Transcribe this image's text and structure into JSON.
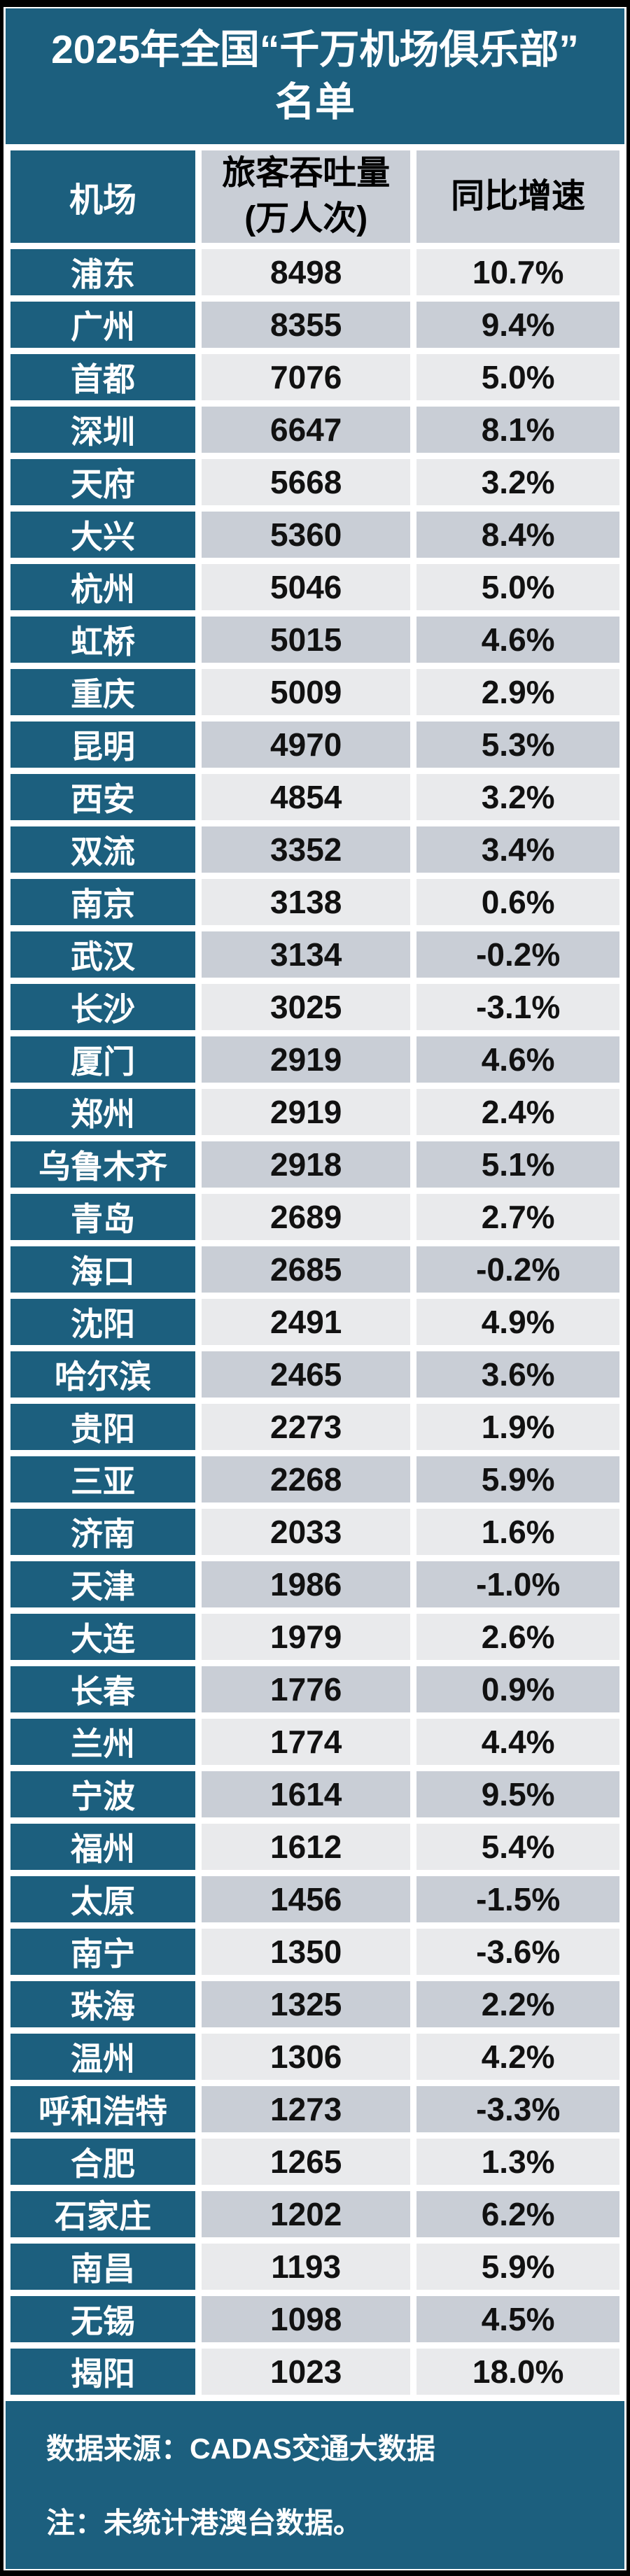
{
  "title": "2025年全国“千万机场俱乐部”名单",
  "colors": {
    "teal": "#1C5F7E",
    "row_light": "#E9EAEC",
    "row_dark": "#C9CED6",
    "frame": "#000000",
    "header_text": "#FFFFFF",
    "value_text": "#111111"
  },
  "chart_data": {
    "type": "table",
    "title": "2025年全国“千万机场俱乐部”名单",
    "columns": [
      "机场",
      "旅客吞吐量\n(万人次)",
      "同比增速"
    ],
    "column_keys": [
      "airport",
      "throughput_10k",
      "yoy_growth"
    ],
    "rows": [
      [
        "浦东",
        8498,
        "10.7%"
      ],
      [
        "广州",
        8355,
        "9.4%"
      ],
      [
        "首都",
        7076,
        "5.0%"
      ],
      [
        "深圳",
        6647,
        "8.1%"
      ],
      [
        "天府",
        5668,
        "3.2%"
      ],
      [
        "大兴",
        5360,
        "8.4%"
      ],
      [
        "杭州",
        5046,
        "5.0%"
      ],
      [
        "虹桥",
        5015,
        "4.6%"
      ],
      [
        "重庆",
        5009,
        "2.9%"
      ],
      [
        "昆明",
        4970,
        "5.3%"
      ],
      [
        "西安",
        4854,
        "3.2%"
      ],
      [
        "双流",
        3352,
        "3.4%"
      ],
      [
        "南京",
        3138,
        "0.6%"
      ],
      [
        "武汉",
        3134,
        "-0.2%"
      ],
      [
        "长沙",
        3025,
        "-3.1%"
      ],
      [
        "厦门",
        2919,
        "4.6%"
      ],
      [
        "郑州",
        2919,
        "2.4%"
      ],
      [
        "乌鲁木齐",
        2918,
        "5.1%"
      ],
      [
        "青岛",
        2689,
        "2.7%"
      ],
      [
        "海口",
        2685,
        "-0.2%"
      ],
      [
        "沈阳",
        2491,
        "4.9%"
      ],
      [
        "哈尔滨",
        2465,
        "3.6%"
      ],
      [
        "贵阳",
        2273,
        "1.9%"
      ],
      [
        "三亚",
        2268,
        "5.9%"
      ],
      [
        "济南",
        2033,
        "1.6%"
      ],
      [
        "天津",
        1986,
        "-1.0%"
      ],
      [
        "大连",
        1979,
        "2.6%"
      ],
      [
        "长春",
        1776,
        "0.9%"
      ],
      [
        "兰州",
        1774,
        "4.4%"
      ],
      [
        "宁波",
        1614,
        "9.5%"
      ],
      [
        "福州",
        1612,
        "5.4%"
      ],
      [
        "太原",
        1456,
        "-1.5%"
      ],
      [
        "南宁",
        1350,
        "-3.6%"
      ],
      [
        "珠海",
        1325,
        "2.2%"
      ],
      [
        "温州",
        1306,
        "4.2%"
      ],
      [
        "呼和浩特",
        1273,
        "-3.3%"
      ],
      [
        "合肥",
        1265,
        "1.3%"
      ],
      [
        "石家庄",
        1202,
        "6.2%"
      ],
      [
        "南昌",
        1193,
        "5.9%"
      ],
      [
        "无锡",
        1098,
        "4.5%"
      ],
      [
        "揭阳",
        1023,
        "18.0%"
      ]
    ],
    "source_note": "数据来源：CADAS交通大数据",
    "note": "注：未统计港澳台数据。",
    "layout_hints": {
      "first_column_style": "teal background, white bold text",
      "row_striping": "odd rows light gray, even rows darker gray",
      "grid": "white gutters between cells"
    }
  }
}
